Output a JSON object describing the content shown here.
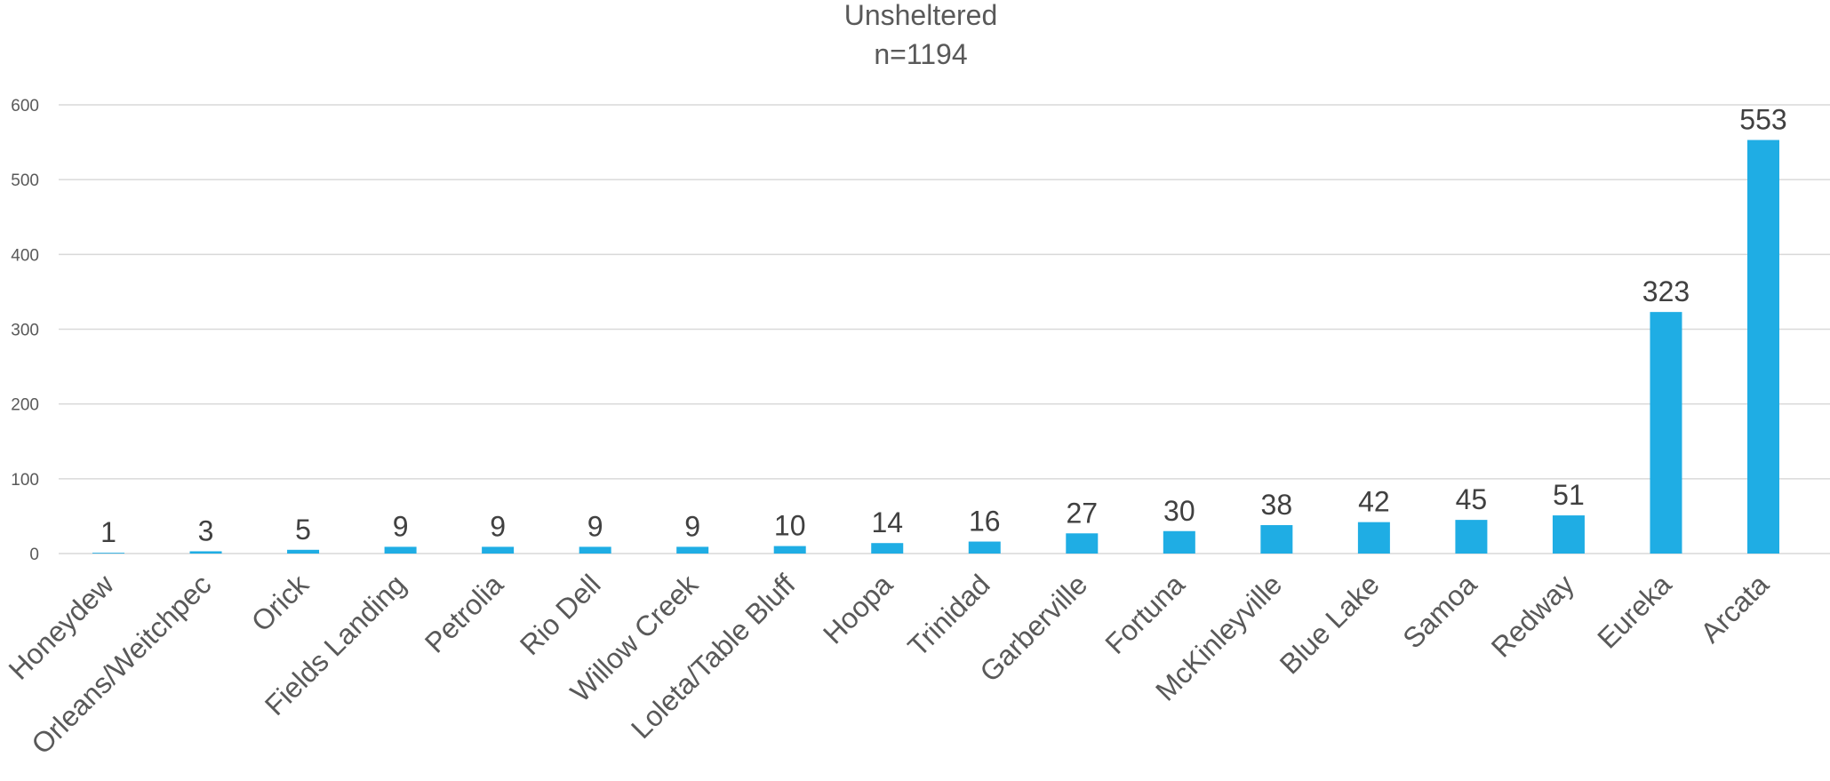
{
  "chart_data": {
    "type": "bar",
    "title": "Unsheltered",
    "subtitle": "n=1194",
    "xlabel": "",
    "ylabel": "",
    "ylim": [
      0,
      600
    ],
    "yticks": [
      0,
      100,
      200,
      300,
      400,
      500,
      600
    ],
    "grid": true,
    "legend": "none",
    "bar_color": "#1fade4",
    "categories": [
      "Honeydew",
      "Orleans/Weitchpec",
      "Orick",
      "Fields Landing",
      "Petrolia",
      "Rio Dell",
      "Willow Creek",
      "Loleta/Table Bluff",
      "Hoopa",
      "Trinidad",
      "Garberville",
      "Fortuna",
      "McKinleyville",
      "Blue Lake",
      "Samoa",
      "Redway",
      "Eureka",
      "Arcata"
    ],
    "values": [
      1,
      3,
      5,
      9,
      9,
      9,
      9,
      10,
      14,
      16,
      27,
      30,
      38,
      42,
      45,
      51,
      323,
      553
    ]
  }
}
